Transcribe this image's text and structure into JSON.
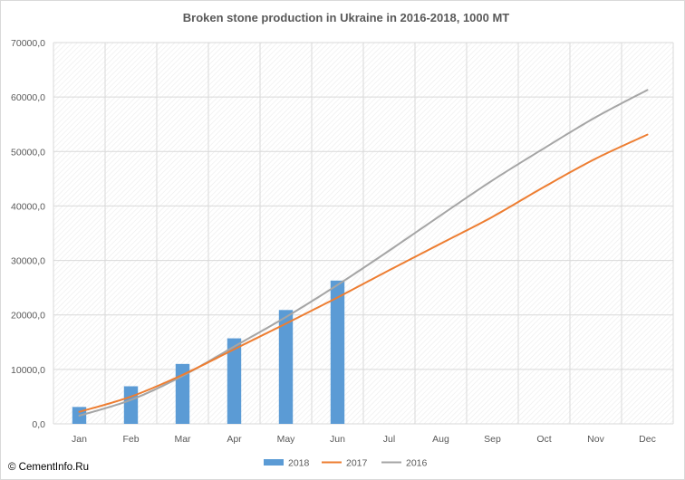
{
  "source_label": "© CementInfo.Ru",
  "chart_data": {
    "type": "bar+line",
    "title": "Broken stone production in Ukraine in 2016-2018,  1000  MT",
    "categories": [
      "Jan",
      "Feb",
      "Mar",
      "Apr",
      "May",
      "Jun",
      "Jul",
      "Aug",
      "Sep",
      "Oct",
      "Nov",
      "Dec"
    ],
    "ylim": [
      0,
      70000
    ],
    "yticks": [
      0,
      10000,
      20000,
      30000,
      40000,
      50000,
      60000,
      70000
    ],
    "ytick_labels": [
      "0,0",
      "10000,0",
      "20000,0",
      "30000,0",
      "40000,0",
      "50000,0",
      "60000,0",
      "70000,0"
    ],
    "grid": true,
    "legend_position": "bottom",
    "series": [
      {
        "name": "2018",
        "kind": "bar",
        "color": "#5b9bd5",
        "values": [
          3100,
          6900,
          11000,
          15700,
          20900,
          26300,
          null,
          null,
          null,
          null,
          null,
          null
        ]
      },
      {
        "name": "2017",
        "kind": "line",
        "color": "#ed7d31",
        "values": [
          2200,
          5000,
          9000,
          13700,
          18400,
          23200,
          28200,
          33100,
          38000,
          43500,
          48700,
          53100
        ]
      },
      {
        "name": "2016",
        "kind": "line",
        "color": "#a5a5a5",
        "values": [
          1500,
          4400,
          8800,
          14200,
          19600,
          25500,
          31800,
          38300,
          44700,
          50600,
          56300,
          61300
        ]
      }
    ]
  }
}
